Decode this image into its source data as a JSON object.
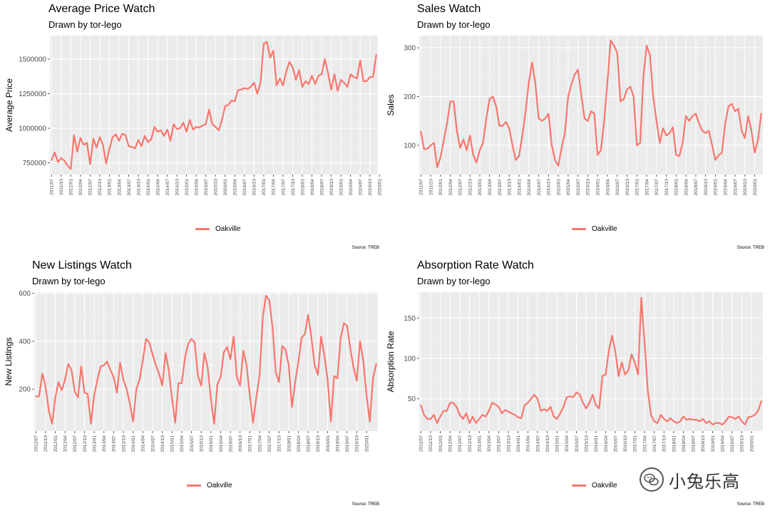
{
  "watermark": {
    "text": "小兔乐高",
    "icon": "wechat-icon"
  },
  "chart_data": [
    {
      "type": "line",
      "title": "Average Price Watch",
      "subtitle": "Drawn by tor-lego",
      "xlabel": "",
      "ylabel": "Average Price",
      "source": "Source: TREB",
      "legend_position": "bottom",
      "grid": true,
      "color": "#F8766D",
      "start": "2011/07",
      "x_ticks": [
        "2011/07",
        "2011/10",
        "2012/01",
        "2012/04",
        "2012/07",
        "2012/10",
        "2013/01",
        "2013/04",
        "2013/07",
        "2013/10",
        "2014/01",
        "2014/04",
        "2014/07",
        "2014/10",
        "2015/01",
        "2015/04",
        "2015/07",
        "2015/10",
        "2016/01",
        "2016/04",
        "2016/07",
        "2016/10",
        "2017/01",
        "2017/04",
        "2017/07",
        "2017/10",
        "2018/01",
        "2018/04",
        "2018/07",
        "2018/10",
        "2019/01",
        "2019/04",
        "2019/07",
        "2019/10",
        "2020/01"
      ],
      "y_ticks": [
        {
          "v": 750000,
          "label": "750000"
        },
        {
          "v": 1000000,
          "label": "1000000"
        },
        {
          "v": 1250000,
          "label": "1250000"
        },
        {
          "v": 1500000,
          "label": "1500000"
        }
      ],
      "ylim": [
        665000,
        1670000
      ],
      "series": [
        {
          "name": "Oakville",
          "values": [
            770000,
            825000,
            755000,
            785000,
            765000,
            730000,
            705000,
            950000,
            830000,
            930000,
            880000,
            895000,
            740000,
            925000,
            860000,
            935000,
            880000,
            745000,
            850000,
            935000,
            955000,
            910000,
            960000,
            950000,
            870000,
            865000,
            855000,
            915000,
            870000,
            945000,
            900000,
            920000,
            1010000,
            975000,
            985000,
            945000,
            990000,
            910000,
            1030000,
            995000,
            1000000,
            1040000,
            975000,
            1060000,
            990000,
            1010000,
            1005000,
            1020000,
            1030000,
            1135000,
            1030000,
            1010000,
            985000,
            1060000,
            1160000,
            1170000,
            1200000,
            1195000,
            1275000,
            1280000,
            1290000,
            1285000,
            1300000,
            1330000,
            1250000,
            1330000,
            1610000,
            1625000,
            1510000,
            1560000,
            1310000,
            1360000,
            1310000,
            1410000,
            1480000,
            1440000,
            1350000,
            1420000,
            1300000,
            1340000,
            1320000,
            1380000,
            1320000,
            1380000,
            1390000,
            1500000,
            1400000,
            1280000,
            1390000,
            1270000,
            1350000,
            1330000,
            1300000,
            1390000,
            1370000,
            1360000,
            1490000,
            1340000,
            1340000,
            1370000,
            1370000,
            1530000
          ]
        }
      ]
    },
    {
      "type": "line",
      "title": "Sales Watch",
      "subtitle": "Drawn by tor-lego",
      "xlabel": "",
      "ylabel": "Sales",
      "source": "Source: TREB",
      "legend_position": "bottom",
      "grid": true,
      "color": "#F8766D",
      "start": "2011/07",
      "x_ticks": [
        "2011/07",
        "2011/10",
        "2012/01",
        "2012/04",
        "2012/07",
        "2012/10",
        "2013/01",
        "2013/04",
        "2013/07",
        "2013/10",
        "2014/01",
        "2014/04",
        "2014/07",
        "2014/10",
        "2015/01",
        "2015/04",
        "2015/07",
        "2015/10",
        "2016/01",
        "2016/04",
        "2016/07",
        "2016/10",
        "2017/01",
        "2017/04",
        "2017/07",
        "2017/10",
        "2018/01",
        "2018/04",
        "2018/07",
        "2018/10",
        "2019/01",
        "2019/04",
        "2019/07",
        "2019/10",
        "2020/01"
      ],
      "y_ticks": [
        {
          "v": 100,
          "label": "100"
        },
        {
          "v": 200,
          "label": "200"
        },
        {
          "v": 300,
          "label": "300"
        }
      ],
      "ylim": [
        40,
        325
      ],
      "series": [
        {
          "name": "Oakville",
          "values": [
            128,
            92,
            93,
            100,
            105,
            55,
            75,
            110,
            145,
            190,
            190,
            130,
            95,
            112,
            90,
            120,
            80,
            65,
            90,
            105,
            155,
            195,
            200,
            180,
            140,
            140,
            148,
            135,
            100,
            70,
            78,
            120,
            170,
            230,
            270,
            225,
            155,
            150,
            155,
            165,
            100,
            70,
            58,
            95,
            125,
            200,
            225,
            245,
            255,
            205,
            155,
            150,
            170,
            165,
            80,
            90,
            150,
            230,
            315,
            305,
            290,
            190,
            195,
            215,
            220,
            200,
            100,
            105,
            240,
            305,
            285,
            200,
            150,
            105,
            135,
            120,
            125,
            137,
            80,
            78,
            105,
            160,
            150,
            160,
            165,
            145,
            130,
            125,
            130,
            100,
            70,
            80,
            85,
            145,
            180,
            185,
            170,
            175,
            130,
            115,
            160,
            130,
            85,
            110,
            165
          ]
        }
      ]
    },
    {
      "type": "line",
      "title": "New Listings Watch",
      "subtitle": "Drawn by tor-lego",
      "xlabel": "",
      "ylabel": "New Listings",
      "source": "Source: TREB",
      "legend_position": "bottom",
      "grid": true,
      "color": "#F8766D",
      "start": "2011/07",
      "x_ticks": [
        "2011/07",
        "2011/10",
        "2012/01",
        "2012/04",
        "2012/07",
        "2012/10",
        "2013/01",
        "2013/04",
        "2013/07",
        "2013/10",
        "2014/01",
        "2014/04",
        "2014/07",
        "2014/10",
        "2015/01",
        "2015/04",
        "2015/07",
        "2015/10",
        "2016/01",
        "2016/04",
        "2016/07",
        "2016/10",
        "2017/01",
        "2017/04",
        "2017/07",
        "2017/10",
        "2018/01",
        "2018/04",
        "2018/07",
        "2018/10",
        "2019/01",
        "2019/04",
        "2019/07",
        "2019/10",
        "2020/01"
      ],
      "y_ticks": [
        {
          "v": 200,
          "label": "200"
        },
        {
          "v": 400,
          "label": "400"
        },
        {
          "v": 600,
          "label": "600"
        }
      ],
      "ylim": [
        25,
        605
      ],
      "series": [
        {
          "name": "Oakville",
          "values": [
            170,
            170,
            265,
            210,
            110,
            55,
            165,
            230,
            195,
            240,
            305,
            280,
            190,
            165,
            295,
            185,
            180,
            55,
            175,
            240,
            295,
            300,
            315,
            280,
            250,
            185,
            310,
            240,
            200,
            140,
            65,
            200,
            240,
            320,
            410,
            395,
            345,
            300,
            265,
            215,
            350,
            280,
            160,
            60,
            225,
            225,
            330,
            390,
            410,
            395,
            255,
            215,
            350,
            290,
            160,
            55,
            220,
            250,
            355,
            375,
            325,
            420,
            250,
            215,
            360,
            300,
            175,
            60,
            165,
            255,
            500,
            590,
            570,
            460,
            270,
            230,
            380,
            365,
            300,
            125,
            230,
            315,
            415,
            430,
            510,
            415,
            300,
            260,
            420,
            340,
            240,
            65,
            255,
            245,
            410,
            475,
            465,
            370,
            290,
            235,
            400,
            320,
            175,
            65,
            245,
            305
          ]
        }
      ]
    },
    {
      "type": "line",
      "title": "Absorption Rate Watch",
      "subtitle": "Drawn by tor-lego",
      "xlabel": "",
      "ylabel": "Absorption Rate",
      "source": "Source: TREB",
      "legend_position": "bottom",
      "grid": true,
      "color": "#F8766D",
      "start": "2011/07",
      "x_ticks": [
        "2011/07",
        "2011/10",
        "2012/01",
        "2012/04",
        "2012/07",
        "2012/10",
        "2013/01",
        "2013/04",
        "2013/07",
        "2013/10",
        "2014/01",
        "2014/04",
        "2014/07",
        "2014/10",
        "2015/01",
        "2015/04",
        "2015/07",
        "2015/10",
        "2016/01",
        "2016/04",
        "2016/07",
        "2016/10",
        "2017/01",
        "2017/04",
        "2017/07",
        "2017/10",
        "2018/01",
        "2018/04",
        "2018/07",
        "2018/10",
        "2019/01",
        "2019/04",
        "2019/07",
        "2019/10",
        "2020/01"
      ],
      "y_ticks": [
        {
          "v": 50,
          "label": "50"
        },
        {
          "v": 100,
          "label": "100"
        },
        {
          "v": 150,
          "label": "150"
        }
      ],
      "ylim": [
        10,
        182
      ],
      "series": [
        {
          "name": "Oakville",
          "values": [
            42,
            30,
            25,
            25,
            30,
            20,
            28,
            35,
            35,
            45,
            45,
            40,
            30,
            25,
            32,
            20,
            28,
            20,
            25,
            30,
            28,
            35,
            45,
            43,
            40,
            32,
            36,
            34,
            32,
            30,
            27,
            26,
            42,
            45,
            50,
            55,
            50,
            35,
            37,
            35,
            40,
            28,
            25,
            32,
            40,
            52,
            53,
            52,
            58,
            55,
            45,
            38,
            45,
            55,
            42,
            38,
            78,
            80,
            110,
            128,
            108,
            78,
            95,
            80,
            85,
            105,
            95,
            80,
            175,
            120,
            60,
            30,
            22,
            20,
            30,
            25,
            22,
            26,
            22,
            20,
            22,
            28,
            24,
            25,
            24,
            24,
            22,
            25,
            20,
            22,
            18,
            20,
            20,
            18,
            22,
            28,
            27,
            25,
            28,
            22,
            18,
            27,
            28,
            30,
            35,
            47
          ]
        }
      ]
    }
  ]
}
